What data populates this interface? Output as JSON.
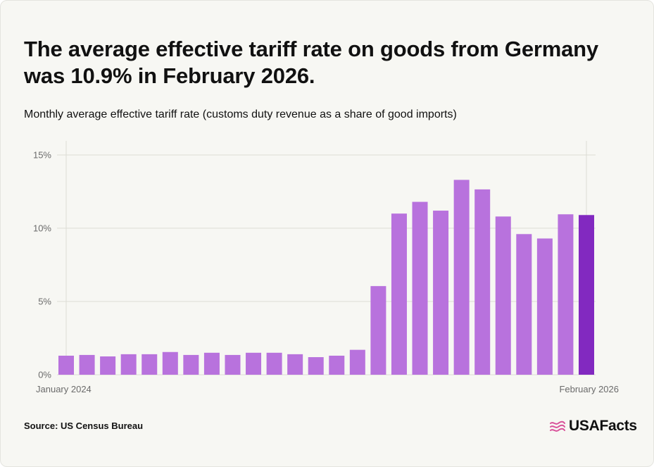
{
  "title": "The average effective tariff rate on goods from Germany was 10.9% in February 2026.",
  "subtitle": "Monthly average effective tariff rate (customs duty revenue as a share of good imports)",
  "source": "Source: US Census Bureau",
  "logo": {
    "text": "USAFacts",
    "icon": "flag-icon"
  },
  "colors": {
    "bar": "#b872dd",
    "highlight": "#8229c0",
    "grid": "#dcdcd6",
    "background": "#f7f7f3"
  },
  "chart_data": {
    "type": "bar",
    "categories": [
      "2024-01",
      "2024-02",
      "2024-03",
      "2024-04",
      "2024-05",
      "2024-06",
      "2024-07",
      "2024-08",
      "2024-09",
      "2024-10",
      "2024-11",
      "2024-12",
      "2025-01",
      "2025-02",
      "2025-03",
      "2025-04",
      "2025-05",
      "2025-06",
      "2025-07",
      "2025-08",
      "2025-09",
      "2025-10",
      "2025-11",
      "2025-12",
      "2026-01",
      "2026-02"
    ],
    "values": [
      1.3,
      1.35,
      1.25,
      1.4,
      1.4,
      1.55,
      1.35,
      1.5,
      1.35,
      1.5,
      1.5,
      1.4,
      1.2,
      1.3,
      1.7,
      6.05,
      11.0,
      11.8,
      11.2,
      13.3,
      12.65,
      10.8,
      9.6,
      9.3,
      10.95,
      10.9
    ],
    "x_tick_labels": [
      {
        "index": 0,
        "label": "January 2024"
      },
      {
        "index": 25,
        "label": "February 2026"
      }
    ],
    "y_ticks": [
      {
        "value": 0,
        "label": "0%"
      },
      {
        "value": 5,
        "label": "5%"
      },
      {
        "value": 10,
        "label": "10%"
      },
      {
        "value": 15,
        "label": "15%"
      }
    ],
    "ylim": [
      0,
      15
    ],
    "highlight_index": 25,
    "grid": true
  }
}
